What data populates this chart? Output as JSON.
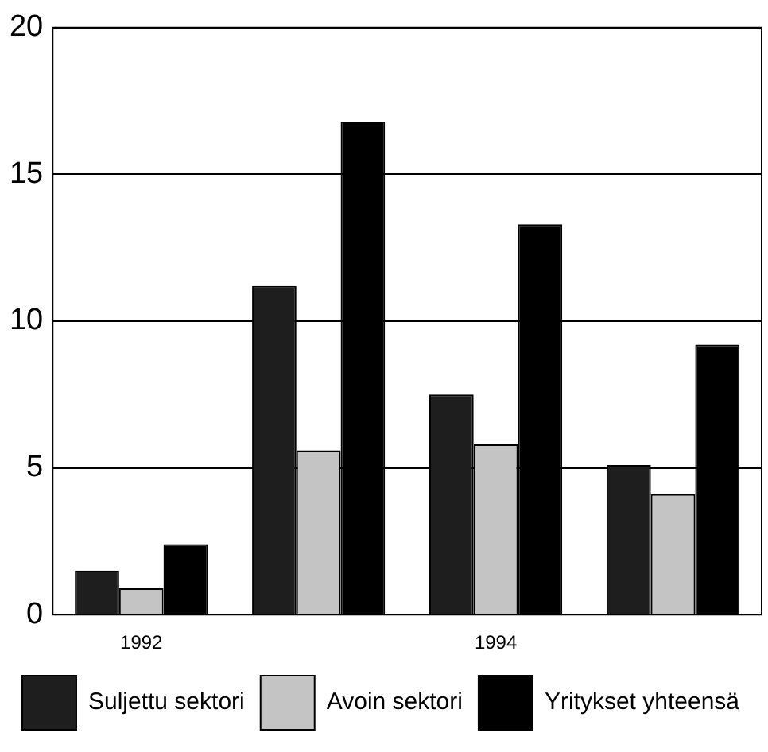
{
  "chart_data": {
    "type": "bar",
    "categories": [
      "1992",
      null,
      "1994",
      null
    ],
    "series": [
      {
        "name": "Suljettu sektori",
        "color": "#1e1e1e",
        "values": [
          1.5,
          11.2,
          7.5,
          5.1
        ]
      },
      {
        "name": "Avoin sektori",
        "color": "#c4c4c4",
        "values": [
          0.9,
          5.6,
          5.8,
          4.1
        ]
      },
      {
        "name": "Yritykset yhteensä",
        "color": "#000000",
        "values": [
          2.4,
          16.8,
          13.3,
          9.2
        ]
      }
    ],
    "ylim": [
      0,
      20
    ],
    "yticks": [
      0,
      5,
      10,
      15,
      20
    ],
    "grid": "y",
    "legend": "bottom"
  }
}
